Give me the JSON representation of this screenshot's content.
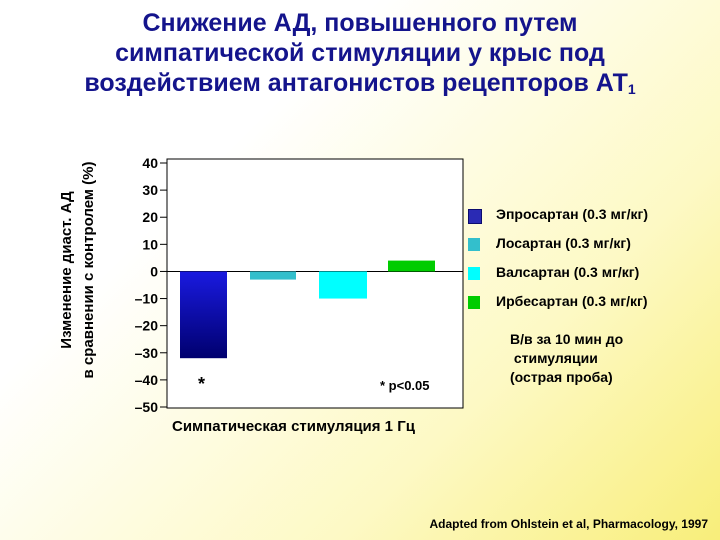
{
  "title_lines": [
    "Снижение АД, повышенного путем",
    "симпатической стимуляции у крыс под",
    "воздействием антагонистов рецепторов АТ"
  ],
  "title_subscript": "1",
  "ylabel_lines": [
    "Изменение диаст. АД",
    "в сравнении с контролем (%)"
  ],
  "xlabel": "Симпатическая стимуляция 1 Гц",
  "significance_note": "* p<0.05",
  "footnote_lines": [
    "В/в за 10 мин до",
    " стимуляции",
    "(острая проба)"
  ],
  "source": "Adapted from Ohlstein et al, Pharmacology, 1997",
  "chart_data": {
    "type": "bar",
    "ylim": [
      -50,
      40
    ],
    "yticks": [
      40,
      30,
      20,
      10,
      0,
      -10,
      -20,
      -30,
      -40,
      -50
    ],
    "ytick_labels": [
      "40",
      "30",
      "20",
      "10",
      "0",
      "–10",
      "–20",
      "–30",
      "–40",
      "–50"
    ],
    "legend_position": "right",
    "series": [
      {
        "name": "Эпросартан (0.3 мг/кг)",
        "value": -32,
        "color": "#1010b0",
        "significant": true
      },
      {
        "name": "Лосартан (0.3 мг/кг)",
        "value": -3,
        "color": "#33bfcc",
        "significant": false
      },
      {
        "name": "Валсартан (0.3 мг/кг)",
        "value": -10,
        "color": "#00ffff",
        "significant": false
      },
      {
        "name": "Ирбесартан (0.3 мг/кг)",
        "value": 4,
        "color": "#00cc00",
        "significant": false
      }
    ],
    "significance_marker": "*"
  }
}
